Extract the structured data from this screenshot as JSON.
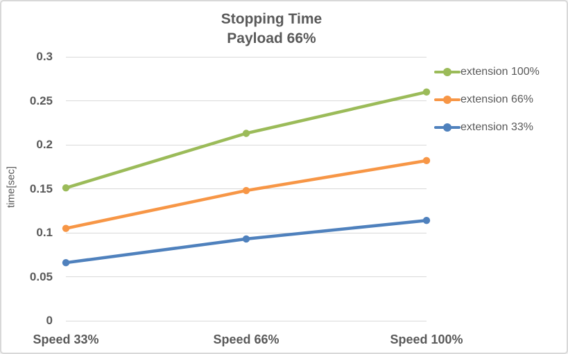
{
  "title": {
    "line1": "Stopping Time",
    "line2": "Payload 66%"
  },
  "colors": {
    "text": "#595959",
    "grid": "#d9d9d9",
    "background": "#ffffff",
    "border": "#d8d8d8"
  },
  "chart_data": {
    "type": "line",
    "title": "Stopping Time Payload 66%",
    "categories": [
      "Speed 33%",
      "Speed 66%",
      "Speed 100%"
    ],
    "series": [
      {
        "name": "extension 100%",
        "color": "#9BBB59",
        "values": [
          0.151,
          0.213,
          0.26
        ]
      },
      {
        "name": "extension 66%",
        "color": "#F79646",
        "values": [
          0.105,
          0.148,
          0.182
        ]
      },
      {
        "name": "extension 33%",
        "color": "#4F81BD",
        "values": [
          0.066,
          0.093,
          0.114
        ]
      }
    ],
    "xlabel": "",
    "ylabel": "time[sec]",
    "ylim": [
      0,
      0.3
    ],
    "yticks": [
      "0",
      "0.05",
      "0.1",
      "0.15",
      "0.2",
      "0.25",
      "0.3"
    ],
    "grid": true,
    "legend_position": "right",
    "marker": "circle"
  }
}
